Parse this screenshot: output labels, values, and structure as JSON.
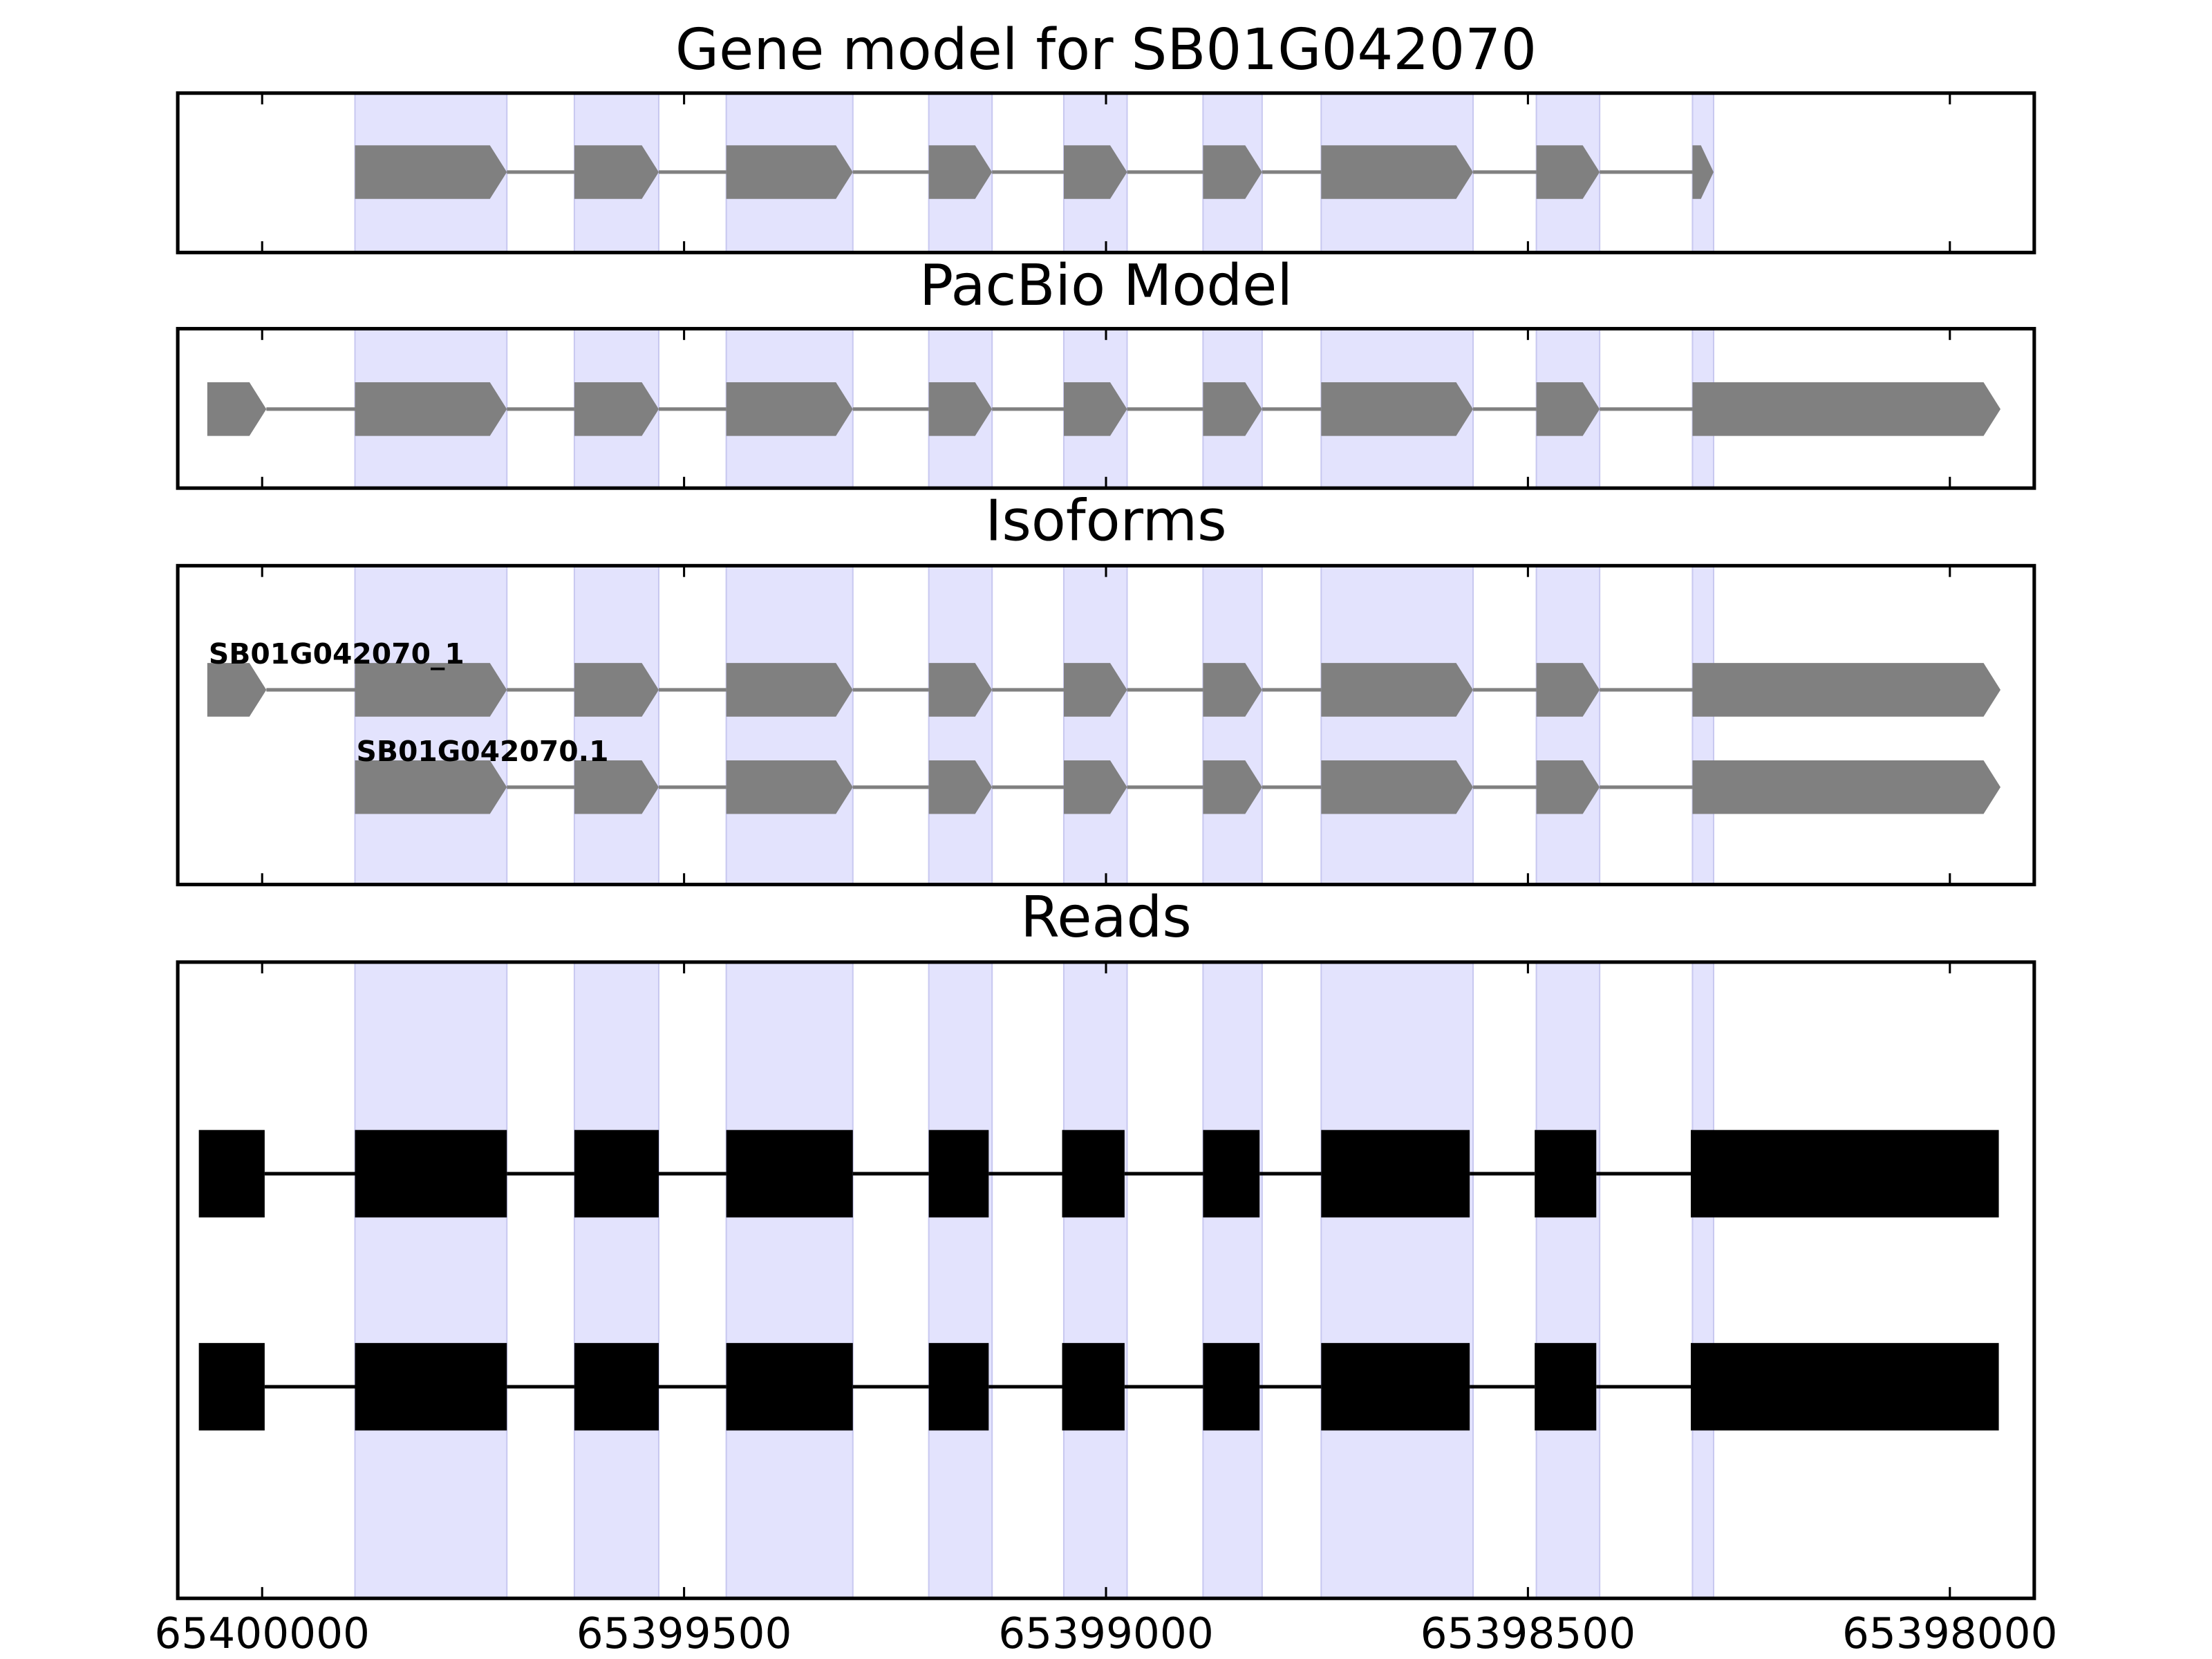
{
  "chart_data": [
    {
      "type": "gene",
      "title": "Gene model for SB01G042070",
      "color": "#808080",
      "highlight_color": "#e3e3fd",
      "xlim": [
        65400100,
        65397900
      ],
      "xticks": [
        65400000,
        65399500,
        65399000,
        65398500,
        65398000
      ],
      "features": [
        {
          "exons": [
            [
              65399890,
              65399710
            ],
            [
              65399630,
              65399530
            ],
            [
              65399450,
              65399300
            ],
            [
              65399210,
              65399135
            ],
            [
              65399050,
              65398975
            ],
            [
              65398885,
              65398815
            ],
            [
              65398745,
              65398565
            ],
            [
              65398490,
              65398415
            ],
            [
              65398305,
              65398280
            ]
          ]
        }
      ]
    },
    {
      "type": "gene",
      "title": "PacBio Model",
      "color": "#808080",
      "highlight_color": "#e3e3fd",
      "xlim": [
        65400100,
        65397900
      ],
      "xticks": [
        65400000,
        65399500,
        65399000,
        65398500,
        65398000
      ],
      "features": [
        {
          "exons": [
            [
              65400065,
              65399995
            ],
            [
              65399890,
              65399710
            ],
            [
              65399630,
              65399530
            ],
            [
              65399450,
              65399300
            ],
            [
              65399210,
              65399135
            ],
            [
              65399050,
              65398975
            ],
            [
              65398885,
              65398815
            ],
            [
              65398745,
              65398565
            ],
            [
              65398490,
              65398415
            ],
            [
              65398305,
              65397940
            ]
          ]
        }
      ]
    },
    {
      "type": "gene",
      "title": "Isoforms",
      "color": "#808080",
      "highlight_color": "#e3e3fd",
      "xlim": [
        65400100,
        65397900
      ],
      "xticks": [
        65400000,
        65399500,
        65399000,
        65398500,
        65398000
      ],
      "features": [
        {
          "name": "SB01G042070_1",
          "exons": [
            [
              65400065,
              65399995
            ],
            [
              65399890,
              65399710
            ],
            [
              65399630,
              65399530
            ],
            [
              65399450,
              65399300
            ],
            [
              65399210,
              65399135
            ],
            [
              65399050,
              65398975
            ],
            [
              65398885,
              65398815
            ],
            [
              65398745,
              65398565
            ],
            [
              65398490,
              65398415
            ],
            [
              65398305,
              65397940
            ]
          ]
        },
        {
          "name": "SB01G042070.1",
          "exons": [
            [
              65399890,
              65399710
            ],
            [
              65399630,
              65399530
            ],
            [
              65399450,
              65399300
            ],
            [
              65399210,
              65399135
            ],
            [
              65399050,
              65398975
            ],
            [
              65398885,
              65398815
            ],
            [
              65398745,
              65398565
            ],
            [
              65398490,
              65398415
            ],
            [
              65398305,
              65397940
            ]
          ]
        }
      ]
    },
    {
      "type": "reads",
      "title": "Reads",
      "color": "#000000",
      "highlight_color": "#e3e3fd",
      "xlim": [
        65400100,
        65397900
      ],
      "xticks": [
        65400000,
        65399500,
        65399000,
        65398500,
        65398000
      ],
      "features": [
        {
          "exons": [
            [
              65400075,
              65399997
            ],
            [
              65399890,
              65399710
            ],
            [
              65399630,
              65399530
            ],
            [
              65399450,
              65399300
            ],
            [
              65399210,
              65399139
            ],
            [
              65399052,
              65398978
            ],
            [
              65398885,
              65398818
            ],
            [
              65398745,
              65398569
            ],
            [
              65398492,
              65398419
            ],
            [
              65398307,
              65397942
            ]
          ]
        },
        {
          "exons": [
            [
              65400075,
              65399997
            ],
            [
              65399890,
              65399710
            ],
            [
              65399630,
              65399530
            ],
            [
              65399450,
              65399300
            ],
            [
              65399210,
              65399139
            ],
            [
              65399052,
              65398978
            ],
            [
              65398885,
              65398818
            ],
            [
              65398745,
              65398569
            ],
            [
              65398492,
              65398419
            ],
            [
              65398307,
              65397942
            ]
          ]
        }
      ]
    }
  ]
}
